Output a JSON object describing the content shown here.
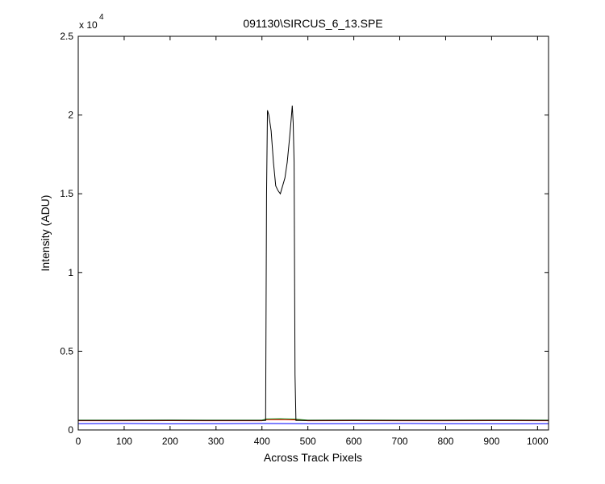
{
  "chart_data": {
    "type": "line",
    "title": "091130\\SIRCUS_6_13.SPE",
    "x_label": "Across Track Pixels",
    "y_label": "Intensity (ADU)",
    "y_scale_label": {
      "base": "x 10",
      "exponent": "4"
    },
    "xlim": [
      0,
      1024
    ],
    "ylim": [
      0,
      2.5
    ],
    "xticks": [
      0,
      100,
      200,
      300,
      400,
      500,
      600,
      700,
      800,
      900,
      1000
    ],
    "yticks": [
      0,
      0.5,
      1,
      1.5,
      2,
      2.5
    ],
    "grid": false,
    "series": [
      {
        "color": "#0000ff",
        "x": [
          0,
          100,
          200,
          300,
          400,
          500,
          600,
          700,
          800,
          900,
          1024
        ],
        "values": [
          0.04,
          0.041,
          0.039,
          0.04,
          0.041,
          0.04,
          0.04,
          0.041,
          0.04,
          0.039,
          0.04
        ]
      },
      {
        "color": "#ff0000",
        "x": [
          0,
          100,
          200,
          300,
          400,
          410,
          440,
          470,
          500,
          600,
          700,
          800,
          900,
          1024
        ],
        "values": [
          0.058,
          0.058,
          0.059,
          0.058,
          0.058,
          0.065,
          0.066,
          0.064,
          0.058,
          0.059,
          0.058,
          0.058,
          0.059,
          0.058
        ]
      },
      {
        "color": "#008000",
        "x": [
          0,
          100,
          200,
          300,
          400,
          410,
          440,
          470,
          500,
          600,
          700,
          800,
          900,
          1024
        ],
        "values": [
          0.062,
          0.062,
          0.063,
          0.062,
          0.062,
          0.07,
          0.071,
          0.069,
          0.062,
          0.063,
          0.062,
          0.062,
          0.063,
          0.062
        ]
      },
      {
        "color": "#000000",
        "x": [
          0,
          100,
          200,
          300,
          400,
          408,
          410,
          412,
          415,
          420,
          425,
          430,
          435,
          440,
          445,
          450,
          455,
          460,
          463,
          466,
          468,
          470,
          472,
          474,
          500,
          600,
          700,
          800,
          900,
          1024
        ],
        "values": [
          0.06,
          0.06,
          0.061,
          0.06,
          0.06,
          0.06,
          1.5,
          2.03,
          2.0,
          1.9,
          1.7,
          1.55,
          1.52,
          1.5,
          1.55,
          1.6,
          1.7,
          1.85,
          1.95,
          2.06,
          1.95,
          1.7,
          0.35,
          0.06,
          0.06,
          0.061,
          0.06,
          0.06,
          0.061,
          0.06
        ]
      }
    ]
  }
}
